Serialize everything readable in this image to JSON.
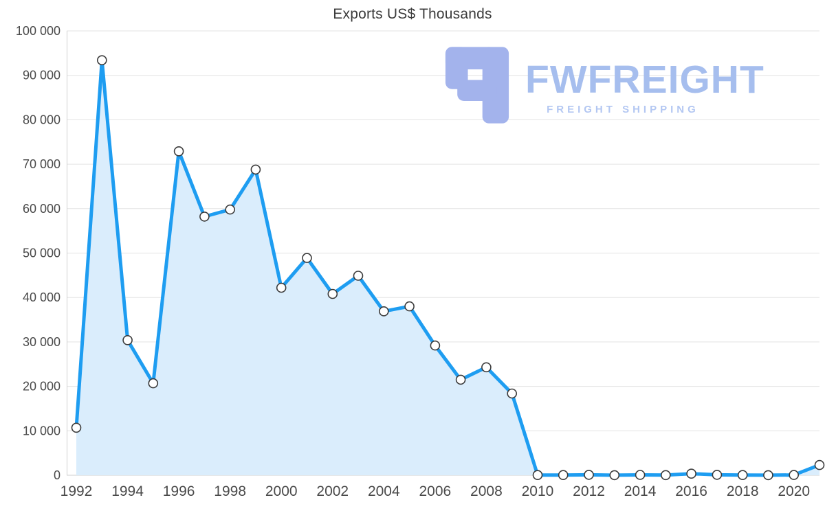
{
  "chart_data": {
    "type": "area",
    "title": "Exports US$ Thousands",
    "xlabel": "",
    "ylabel": "",
    "x": [
      1992,
      1993,
      1994,
      1995,
      1996,
      1997,
      1998,
      1999,
      2000,
      2001,
      2002,
      2003,
      2004,
      2005,
      2006,
      2007,
      2008,
      2009,
      2010,
      2011,
      2012,
      2013,
      2014,
      2015,
      2016,
      2017,
      2018,
      2019,
      2020,
      2021
    ],
    "values": [
      10700,
      93400,
      30400,
      20700,
      72900,
      58200,
      59800,
      68800,
      42200,
      48900,
      40800,
      44900,
      36900,
      38000,
      29200,
      21500,
      24300,
      18400,
      50,
      40,
      100,
      20,
      80,
      30,
      350,
      90,
      50,
      10,
      60,
      2300
    ],
    "ylim": [
      0,
      100000
    ],
    "yticks": [
      0,
      10000,
      20000,
      30000,
      40000,
      50000,
      60000,
      70000,
      80000,
      90000,
      100000
    ],
    "ytick_labels": [
      "0",
      "10 000",
      "20 000",
      "30 000",
      "40 000",
      "50 000",
      "60 000",
      "70 000",
      "80 000",
      "90 000",
      "100 000"
    ],
    "xticks": [
      1992,
      1994,
      1996,
      1998,
      2000,
      2002,
      2004,
      2006,
      2008,
      2010,
      2012,
      2014,
      2016,
      2018,
      2020
    ],
    "grid": "horizontal",
    "legend": "none",
    "marker": "circle",
    "colors": {
      "line": "#1e9df1",
      "area_fill": "#daedfc",
      "marker_fill": "#ffffff",
      "marker_stroke": "#3a3a3a",
      "grid": "#e3e3e3",
      "axis": "#cfcfcf",
      "tick_text": "#4a4a4a",
      "title_text": "#3c3c3c"
    }
  },
  "watermark": {
    "brand": "FWFREIGHT",
    "tagline": "FREIGHT SHIPPING",
    "brand_color": "#a6beee",
    "tagline_color": "#b3c7f2",
    "logo_color": "#a3b3ec"
  }
}
